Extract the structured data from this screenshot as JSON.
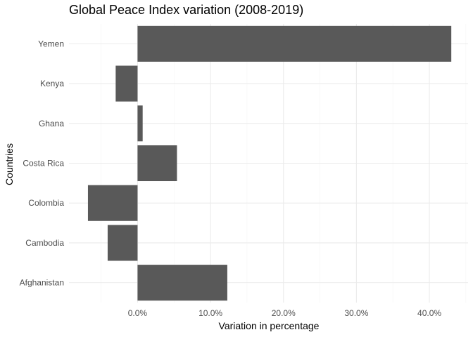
{
  "chart_data": {
    "type": "bar",
    "orientation": "horizontal",
    "title": "Global Peace Index variation (2008-2019)",
    "xlabel": "Variation in percentage",
    "ylabel": "Countries",
    "categories": [
      "Afghanistan",
      "Cambodia",
      "Colombia",
      "Costa Rica",
      "Ghana",
      "Kenya",
      "Yemen"
    ],
    "values": [
      12.3,
      -4.1,
      -6.8,
      5.4,
      0.7,
      -3.0,
      43.0
    ],
    "xlim": [
      -9.4,
      45.3
    ],
    "x_ticks": [
      0,
      10,
      20,
      30,
      40
    ],
    "x_tick_labels": [
      "0.0%",
      "10.0%",
      "20.0%",
      "30.0%",
      "40.0%"
    ],
    "grid": true,
    "colors": {
      "bar": "#595959",
      "grid": "#ebebeb",
      "background": "#ffffff"
    }
  }
}
